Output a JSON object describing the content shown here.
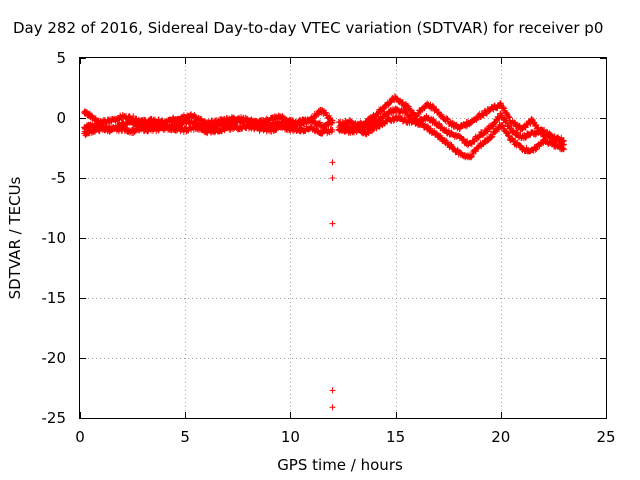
{
  "chart_data": {
    "type": "scatter",
    "title": "Day 282 of 2016, Sidereal Day-to-day VTEC variation (SDTVAR) for receiver p0",
    "xlabel": "GPS time / hours",
    "ylabel": "SDTVAR / TECUs",
    "xlim": [
      0,
      25
    ],
    "ylim": [
      -25,
      5
    ],
    "xticks": [
      0,
      5,
      10,
      15,
      20,
      25
    ],
    "yticks": [
      5,
      0,
      -5,
      -10,
      -15,
      -20,
      -25
    ],
    "grid": true,
    "marker": "+",
    "series": [
      {
        "name": "SDTVAR",
        "color": "#ff0000",
        "bands": [
          {
            "x": [
              0.2,
              0.5,
              1.0,
              1.5,
              2.0,
              2.5,
              3.0,
              3.5,
              4.0,
              4.5,
              5.0,
              5.5,
              6.0,
              6.5,
              7.0,
              7.5,
              8.0,
              8.5,
              9.0,
              9.5,
              10.0,
              10.5,
              11.0,
              11.5,
              12.0
            ],
            "y": [
              -0.8,
              -0.6,
              -0.7,
              -0.9,
              -0.5,
              -0.4,
              -0.6,
              -0.5,
              -0.7,
              -0.6,
              -0.3,
              -0.5,
              -0.8,
              -0.6,
              -0.5,
              -0.2,
              -0.3,
              -0.5,
              -0.6,
              -0.4,
              -0.5,
              -0.3,
              -0.2,
              -0.6,
              -0.4
            ]
          },
          {
            "x": [
              0.2,
              0.5,
              1.0,
              1.5,
              2.0,
              2.5,
              3.0,
              3.5,
              4.0,
              4.5,
              5.0,
              5.5,
              6.0,
              6.5,
              7.0,
              7.5,
              8.0,
              8.5,
              9.0,
              9.5,
              10.0,
              10.5,
              11.0,
              11.5,
              12.0
            ],
            "y": [
              0.5,
              0.2,
              -0.4,
              -0.2,
              0.1,
              0.0,
              -0.3,
              -0.2,
              -0.4,
              -0.1,
              0.2,
              0.1,
              -0.5,
              -0.3,
              -0.1,
              0.0,
              -0.2,
              -0.4,
              -0.1,
              0.1,
              -0.3,
              -0.5,
              0.0,
              0.6,
              -0.2
            ]
          },
          {
            "x": [
              0.2,
              0.5,
              1.0,
              1.5,
              2.0,
              2.5,
              3.0,
              3.5,
              4.0,
              4.5,
              5.0,
              5.5,
              6.0,
              6.5,
              7.0,
              7.5,
              8.0,
              8.5,
              9.0,
              9.5,
              10.0,
              10.5,
              11.0,
              11.5,
              12.0
            ],
            "y": [
              -1.3,
              -1.1,
              -0.9,
              -1.0,
              -0.9,
              -1.1,
              -0.9,
              -1.0,
              -0.8,
              -0.9,
              -1.0,
              -0.8,
              -1.1,
              -1.0,
              -0.9,
              -0.8,
              -0.7,
              -0.9,
              -1.0,
              -0.8,
              -0.9,
              -1.0,
              -0.8,
              -1.2,
              -1.0
            ]
          },
          {
            "x": [
              12.3,
              12.8,
              13.2,
              13.6,
              14.0,
              14.5,
              15.0,
              15.5,
              16.0,
              16.5,
              17.0,
              17.5,
              18.0,
              18.5,
              19.0,
              19.5,
              20.0,
              20.5,
              21.0,
              21.5,
              22.0,
              22.5,
              23.0
            ],
            "y": [
              -0.5,
              -0.3,
              -0.6,
              -0.4,
              0.2,
              1.0,
              1.7,
              1.0,
              0.2,
              1.2,
              0.5,
              -0.3,
              -0.8,
              -0.4,
              0.2,
              0.7,
              1.1,
              -0.3,
              -0.9,
              -0.2,
              -1.4,
              -1.6,
              -1.9
            ]
          },
          {
            "x": [
              12.3,
              12.8,
              13.2,
              13.6,
              14.0,
              14.5,
              15.0,
              15.5,
              16.0,
              16.5,
              17.0,
              17.5,
              18.0,
              18.5,
              19.0,
              19.5,
              20.0,
              20.5,
              21.0,
              21.5,
              22.0,
              22.5,
              23.0
            ],
            "y": [
              -0.9,
              -0.8,
              -0.9,
              -0.7,
              -0.4,
              0.3,
              0.7,
              0.4,
              -0.2,
              0.0,
              -0.5,
              -1.2,
              -1.6,
              -2.2,
              -1.4,
              -0.8,
              0.3,
              -1.0,
              -1.6,
              -1.3,
              -1.0,
              -1.7,
              -2.2
            ]
          },
          {
            "x": [
              12.3,
              12.8,
              13.2,
              13.6,
              14.0,
              14.5,
              15.0,
              15.5,
              16.0,
              16.5,
              17.0,
              17.5,
              18.0,
              18.5,
              19.0,
              19.5,
              20.0,
              20.5,
              21.0,
              21.5,
              22.0,
              22.5,
              23.0
            ],
            "y": [
              -1.0,
              -1.1,
              -1.0,
              -1.2,
              -0.8,
              -0.3,
              0.0,
              -0.2,
              -0.4,
              -0.8,
              -1.5,
              -2.2,
              -2.9,
              -3.3,
              -2.3,
              -1.6,
              -0.6,
              -1.8,
              -2.5,
              -2.8,
              -1.9,
              -2.2,
              -2.6
            ]
          }
        ],
        "outliers": [
          {
            "x": 12.0,
            "y": -3.7
          },
          {
            "x": 12.0,
            "y": -5.0
          },
          {
            "x": 12.0,
            "y": -8.8
          },
          {
            "x": 12.0,
            "y": -22.7
          },
          {
            "x": 12.0,
            "y": -24.1
          }
        ]
      }
    ]
  }
}
